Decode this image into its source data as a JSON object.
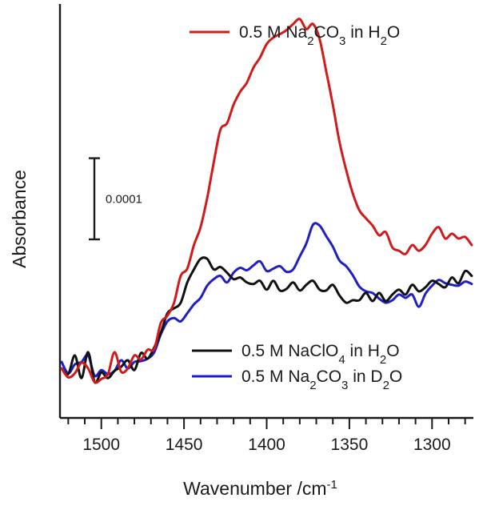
{
  "chart_data": {
    "type": "line",
    "xlabel": "Wavenumber /cm",
    "xlabel_superscript": "-1",
    "ylabel": "Absorbance",
    "xlim": [
      1525,
      1275
    ],
    "x_reversed": true,
    "x_ticks": [
      1500,
      1450,
      1400,
      1350,
      1300
    ],
    "x_tick_labels": [
      "1500",
      "1450",
      "1400",
      "1350",
      "1300"
    ],
    "y_tick_labels_shown": false,
    "ylim": [
      -0.00043,
      8e-05
    ],
    "grid": false,
    "scale_bar": {
      "label": "0.0001",
      "value": 0.0001,
      "from": -0.00021,
      "to": -0.00011
    },
    "legend": [
      {
        "series": 0,
        "position": "top-right"
      },
      {
        "series": 1,
        "position": "bottom-right"
      },
      {
        "series": 2,
        "position": "bottom-right"
      }
    ],
    "series": [
      {
        "name": "0.5 M Na2CO3 in H2O",
        "color": "#d11a1a",
        "x": [
          1524,
          1520,
          1516,
          1512,
          1508,
          1504,
          1500,
          1496,
          1492,
          1488,
          1484,
          1480,
          1476,
          1472,
          1468,
          1464,
          1460,
          1456,
          1452,
          1448,
          1444,
          1440,
          1436,
          1432,
          1428,
          1424,
          1420,
          1416,
          1412,
          1408,
          1404,
          1400,
          1396,
          1392,
          1388,
          1384,
          1380,
          1376,
          1372,
          1368,
          1364,
          1360,
          1356,
          1352,
          1348,
          1344,
          1340,
          1336,
          1332,
          1328,
          1324,
          1320,
          1316,
          1312,
          1308,
          1304,
          1300,
          1296,
          1292,
          1288,
          1284,
          1280,
          1276
        ],
        "y": [
          -0.000369,
          -0.00038,
          -0.000375,
          -0.000362,
          -0.000369,
          -0.000386,
          -0.000382,
          -0.000376,
          -0.000349,
          -0.000373,
          -0.000369,
          -0.000353,
          -0.000358,
          -0.000346,
          -0.000345,
          -0.000313,
          -0.000304,
          -0.000288,
          -0.000255,
          -0.000246,
          -0.000217,
          -0.000195,
          -0.000159,
          -0.000115,
          -7.5e-05,
          -6.7e-05,
          -4.4e-05,
          -2.8e-05,
          -1.7e-05,
          1.7e-06,
          1.41e-05,
          3.07e-05,
          3.86e-05,
          4.28e-05,
          4.78e-05,
          5.53e-05,
          6.15e-05,
          4.91e-05,
          5.53e-05,
          3.67e-05,
          -2.8e-06,
          -4.42e-05,
          -8.97e-05,
          -0.000124,
          -0.000153,
          -0.000174,
          -0.000184,
          -0.000193,
          -0.000205,
          -0.000201,
          -0.00022,
          -0.000224,
          -0.000228,
          -0.000217,
          -0.000224,
          -0.000217,
          -0.000203,
          -0.000195,
          -0.000209,
          -0.000203,
          -0.000209,
          -0.000207,
          -0.000217
        ]
      },
      {
        "name": "0.5 M NaClO4 in H2O",
        "color": "#111111",
        "x": [
          1524,
          1520,
          1516,
          1512,
          1508,
          1504,
          1500,
          1496,
          1492,
          1488,
          1484,
          1480,
          1476,
          1472,
          1468,
          1464,
          1460,
          1456,
          1452,
          1448,
          1444,
          1440,
          1436,
          1432,
          1428,
          1424,
          1420,
          1416,
          1412,
          1408,
          1404,
          1400,
          1396,
          1392,
          1388,
          1384,
          1380,
          1376,
          1372,
          1368,
          1364,
          1360,
          1356,
          1352,
          1348,
          1344,
          1340,
          1336,
          1332,
          1328,
          1324,
          1320,
          1316,
          1312,
          1308,
          1304,
          1300,
          1296,
          1292,
          1288,
          1284,
          1280,
          1276
        ],
        "y": [
          -0.000369,
          -0.000376,
          -0.000353,
          -0.000381,
          -0.000349,
          -0.000386,
          -0.000374,
          -0.000381,
          -0.000372,
          -0.000367,
          -0.000359,
          -0.000371,
          -0.00035,
          -0.000357,
          -0.000343,
          -0.000325,
          -0.000301,
          -0.000295,
          -0.000288,
          -0.000263,
          -0.000247,
          -0.000234,
          -0.000234,
          -0.000247,
          -0.000244,
          -0.000251,
          -0.000259,
          -0.000257,
          -0.000263,
          -0.000265,
          -0.000261,
          -0.000272,
          -0.000261,
          -0.000273,
          -0.000271,
          -0.000263,
          -0.000273,
          -0.000266,
          -0.000261,
          -0.000272,
          -0.000273,
          -0.000266,
          -0.000279,
          -0.000288,
          -0.000285,
          -0.000285,
          -0.000276,
          -0.000286,
          -0.000276,
          -0.000286,
          -0.000278,
          -0.000272,
          -0.000278,
          -0.000266,
          -0.000274,
          -0.000269,
          -0.000261,
          -0.000265,
          -0.000269,
          -0.000257,
          -0.000264,
          -0.000249,
          -0.000255
        ]
      },
      {
        "name": "0.5 M Na2CO3 in D2O",
        "color": "#1f1fc4",
        "x": [
          1524,
          1520,
          1516,
          1512,
          1508,
          1504,
          1500,
          1496,
          1492,
          1488,
          1484,
          1480,
          1476,
          1472,
          1468,
          1464,
          1460,
          1456,
          1452,
          1448,
          1444,
          1440,
          1436,
          1432,
          1428,
          1424,
          1420,
          1416,
          1412,
          1408,
          1404,
          1400,
          1396,
          1392,
          1388,
          1384,
          1380,
          1376,
          1372,
          1368,
          1364,
          1360,
          1356,
          1352,
          1348,
          1344,
          1340,
          1336,
          1332,
          1328,
          1324,
          1320,
          1316,
          1312,
          1308,
          1304,
          1300,
          1296,
          1292,
          1288,
          1284,
          1280,
          1276
        ],
        "y": [
          -0.000361,
          -0.000375,
          -0.000364,
          -0.000361,
          -0.000353,
          -0.000378,
          -0.000371,
          -0.000376,
          -0.000372,
          -0.000359,
          -0.000369,
          -0.000361,
          -0.00036,
          -0.000357,
          -0.000349,
          -0.000327,
          -0.000311,
          -0.000307,
          -0.000311,
          -0.000301,
          -0.00029,
          -0.000282,
          -0.000267,
          -0.000259,
          -0.000255,
          -0.000263,
          -0.000251,
          -0.000245,
          -0.000248,
          -0.000242,
          -0.000237,
          -0.000249,
          -0.000246,
          -0.000243,
          -0.00025,
          -0.000247,
          -0.000231,
          -0.000215,
          -0.000192,
          -0.000193,
          -0.000206,
          -0.000219,
          -0.000236,
          -0.000243,
          -0.000254,
          -0.000268,
          -0.000274,
          -0.000276,
          -0.000283,
          -0.000288,
          -0.000285,
          -0.000278,
          -0.000282,
          -0.000278,
          -0.000293,
          -0.000277,
          -0.000267,
          -0.00026,
          -0.000264,
          -0.000266,
          -0.000267,
          -0.000262,
          -0.000265
        ]
      }
    ]
  }
}
